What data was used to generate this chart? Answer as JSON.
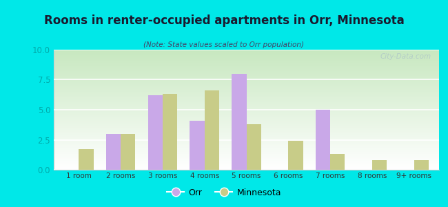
{
  "title": "Rooms in renter-occupied apartments in Orr, Minnesota",
  "subtitle": "(Note: State values scaled to Orr population)",
  "categories": [
    "1 room",
    "2 rooms",
    "3 rooms",
    "4 rooms",
    "5 rooms",
    "6 rooms",
    "7 rooms",
    "8 rooms",
    "9+ rooms"
  ],
  "orr_values": [
    0,
    3.0,
    6.2,
    4.1,
    8.0,
    0,
    5.0,
    0,
    0
  ],
  "mn_values": [
    1.7,
    3.0,
    6.3,
    6.6,
    3.8,
    2.4,
    1.3,
    0.8,
    0.8
  ],
  "orr_color": "#c9a8e8",
  "mn_color": "#c8cc88",
  "background_color": "#00e8e8",
  "ylim": [
    0,
    10
  ],
  "yticks": [
    0,
    2.5,
    5,
    7.5,
    10
  ],
  "bar_width": 0.35,
  "legend_orr": "Orr",
  "legend_mn": "Minnesota",
  "watermark": "City-Data.com",
  "title_color": "#1a1a2e",
  "subtitle_color": "#444466",
  "tick_color": "#00cccc",
  "yticklabel_color": "#00aaaa"
}
